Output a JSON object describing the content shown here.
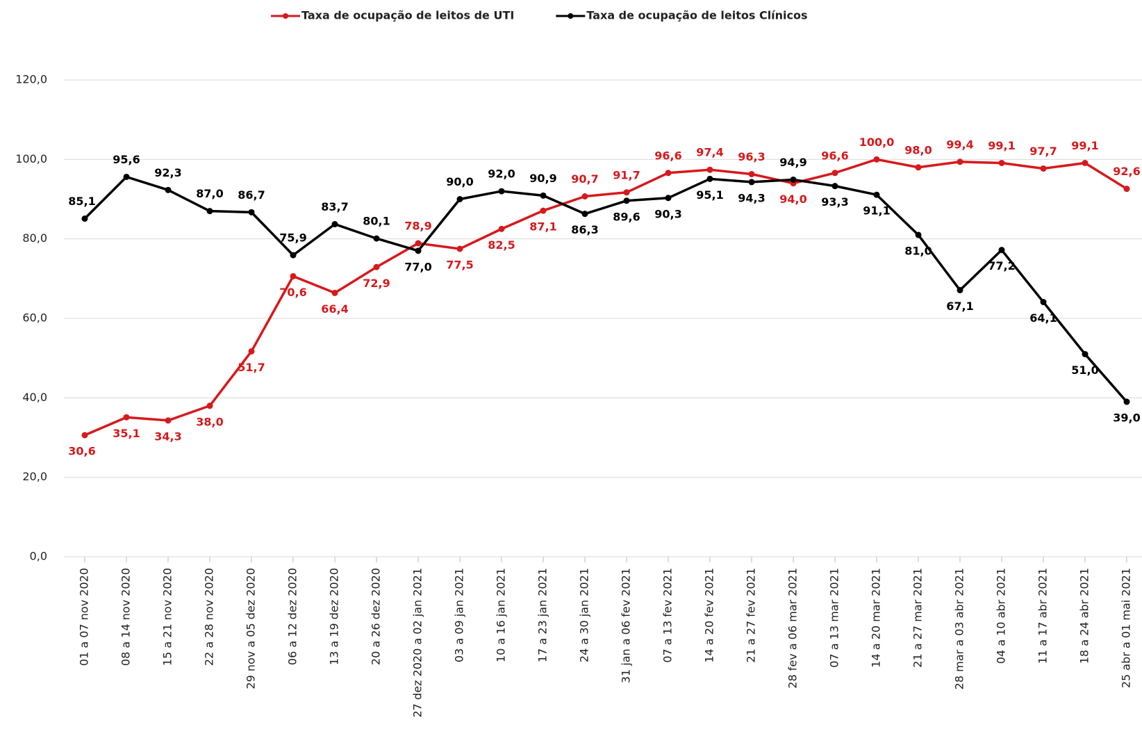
{
  "chart_data": {
    "type": "line",
    "categories": [
      "01 a 07 nov 2020",
      "08 a 14 nov 2020",
      "15 a 21 nov 2020",
      "22 a 28 nov 2020",
      "29 nov a 05 dez 2020",
      "06 a 12 dez 2020",
      "13 a 19 dez 2020",
      "20 a 26 dez 2020",
      "27 dez 2020 a 02 jan 2021",
      "03 a 09 jan 2021",
      "10 a 16 jan 2021",
      "17 a 23 jan 2021",
      "24 a 30 jan 2021",
      "31 jan a 06 fev 2021",
      "07 a 13 fev 2021",
      "14 a 20 fev 2021",
      "21 a 27 fev 2021",
      "28 fev a 06 mar 2021",
      "07 a 13 mar 2021",
      "14 a 20 mar 2021",
      "21 a 27 mar 2021",
      "28 mar a 03 abr 2021",
      "04 a 10 abr 2021",
      "11 a 17 abr 2021",
      "18 a 24 abr 2021",
      "25 abr a 01 mai 2021"
    ],
    "series": [
      {
        "name": "Taxa de ocupação de leitos de UTI",
        "color": "#d7191c",
        "values": [
          30.6,
          35.1,
          34.3,
          38.0,
          51.7,
          70.6,
          66.4,
          72.9,
          78.9,
          77.5,
          82.5,
          87.1,
          90.7,
          91.7,
          96.6,
          97.4,
          96.3,
          94.0,
          96.6,
          100.0,
          98.0,
          99.4,
          99.1,
          97.7,
          99.1,
          92.6
        ],
        "value_labels": [
          "30,6",
          "35,1",
          "34,3",
          "38,0",
          "51,7",
          "70,6",
          "66,4",
          "72,9",
          "78,9",
          "77,5",
          "82,5",
          "87,1",
          "90,7",
          "91,7",
          "96,6",
          "97,4",
          "96,3",
          "94,0",
          "96,6",
          "100,0",
          "98,0",
          "99,4",
          "99,1",
          "97,7",
          "99,1",
          "92,6"
        ]
      },
      {
        "name": "Taxa de ocupação de leitos Clínicos",
        "color": "#000000",
        "values": [
          85.1,
          95.6,
          92.3,
          87.0,
          86.7,
          75.9,
          83.7,
          80.1,
          77.0,
          90.0,
          92.0,
          90.9,
          86.3,
          89.6,
          90.3,
          95.1,
          94.3,
          94.9,
          93.3,
          91.1,
          81.0,
          67.1,
          77.2,
          64.1,
          51.0,
          39.0
        ],
        "value_labels": [
          "85,1",
          "95,6",
          "92,3",
          "87,0",
          "86,7",
          "75,9",
          "83,7",
          "80,1",
          "77,0",
          "90,0",
          "92,0",
          "90,9",
          "86,3",
          "89,6",
          "90,3",
          "95,1",
          "94,3",
          "94,9",
          "93,3",
          "91,1",
          "81,0",
          "67,1",
          "77,2",
          "64,1",
          "51,0",
          "39,0"
        ]
      }
    ],
    "ylim": [
      0,
      120
    ],
    "yticks": [
      {
        "value": 0,
        "label": "0,0"
      },
      {
        "value": 20,
        "label": "20,0"
      },
      {
        "value": 40,
        "label": "40,0"
      },
      {
        "value": 60,
        "label": "60,0"
      },
      {
        "value": 80,
        "label": "80,0"
      },
      {
        "value": 100,
        "label": "100,0"
      },
      {
        "value": 120,
        "label": "120,0"
      }
    ],
    "grid": true,
    "legend": "top"
  }
}
